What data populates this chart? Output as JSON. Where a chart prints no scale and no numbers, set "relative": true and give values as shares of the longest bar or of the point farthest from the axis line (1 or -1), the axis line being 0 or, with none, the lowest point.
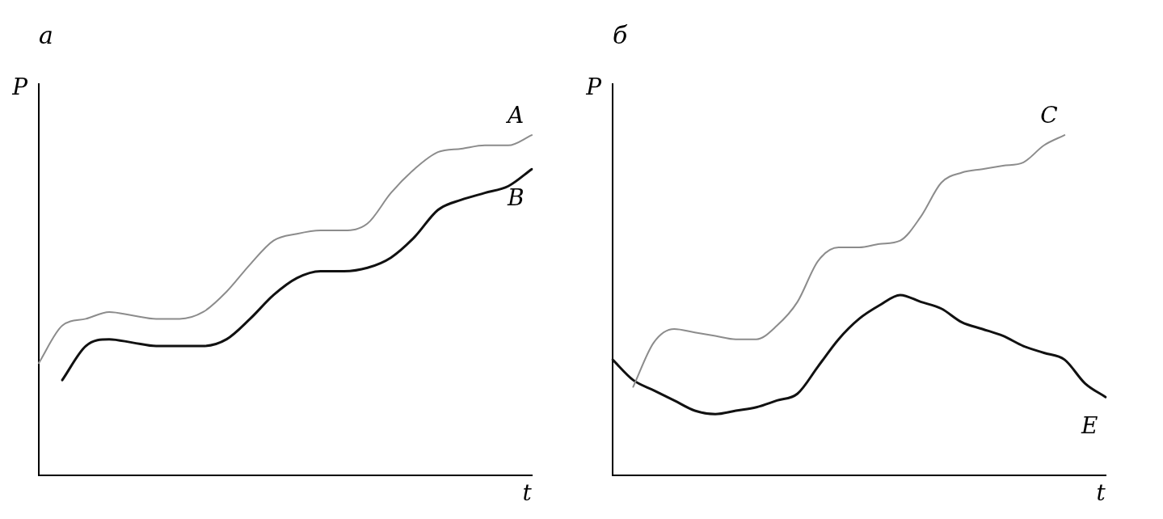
{
  "chart_data": [
    {
      "type": "line",
      "title": "а",
      "xlabel": "t",
      "ylabel": "P",
      "relative": true,
      "legend": false,
      "grid": false,
      "marker": "none",
      "categories": [
        null,
        null,
        null,
        null,
        null,
        null,
        null,
        null,
        null,
        null,
        null,
        null,
        null,
        null,
        null,
        null,
        null,
        null,
        null,
        null,
        null,
        null
      ],
      "series": [
        {
          "name": "A",
          "color": "#8c8c8c",
          "values": [
            0.33,
            0.44,
            0.46,
            0.48,
            0.47,
            0.46,
            0.46,
            0.48,
            0.54,
            0.62,
            0.69,
            0.71,
            0.72,
            0.72,
            0.74,
            0.83,
            0.9,
            0.95,
            0.96,
            0.97,
            0.97,
            1.0
          ]
        },
        {
          "name": "B",
          "color": "#111111",
          "values": [
            null,
            0.28,
            0.38,
            0.4,
            0.39,
            0.38,
            0.38,
            0.38,
            0.4,
            0.46,
            0.53,
            0.58,
            0.6,
            0.6,
            0.61,
            0.64,
            0.7,
            0.78,
            0.81,
            0.83,
            0.85,
            0.9
          ]
        }
      ]
    },
    {
      "type": "line",
      "title": "б",
      "xlabel": "t",
      "ylabel": "P",
      "relative": true,
      "legend": false,
      "grid": false,
      "marker": "none",
      "categories": [
        null,
        null,
        null,
        null,
        null,
        null,
        null,
        null,
        null,
        null,
        null,
        null,
        null,
        null,
        null,
        null,
        null,
        null,
        null,
        null,
        null,
        null,
        null,
        null,
        null
      ],
      "series": [
        {
          "name": "C",
          "color": "#8c8c8c",
          "values": [
            null,
            0.26,
            0.39,
            0.43,
            0.42,
            0.41,
            0.4,
            0.4,
            0.44,
            0.51,
            0.63,
            0.67,
            0.67,
            0.68,
            0.69,
            0.76,
            0.86,
            0.89,
            0.9,
            0.91,
            0.92,
            0.97,
            1.0,
            null,
            null
          ]
        },
        {
          "name": "E",
          "color": "#111111",
          "values": [
            0.34,
            0.28,
            0.25,
            0.22,
            0.19,
            0.18,
            0.19,
            0.2,
            0.22,
            0.24,
            0.32,
            0.4,
            0.46,
            0.5,
            0.53,
            0.51,
            0.49,
            0.45,
            0.43,
            0.41,
            0.38,
            0.36,
            0.34,
            0.27,
            0.23
          ]
        }
      ]
    }
  ]
}
